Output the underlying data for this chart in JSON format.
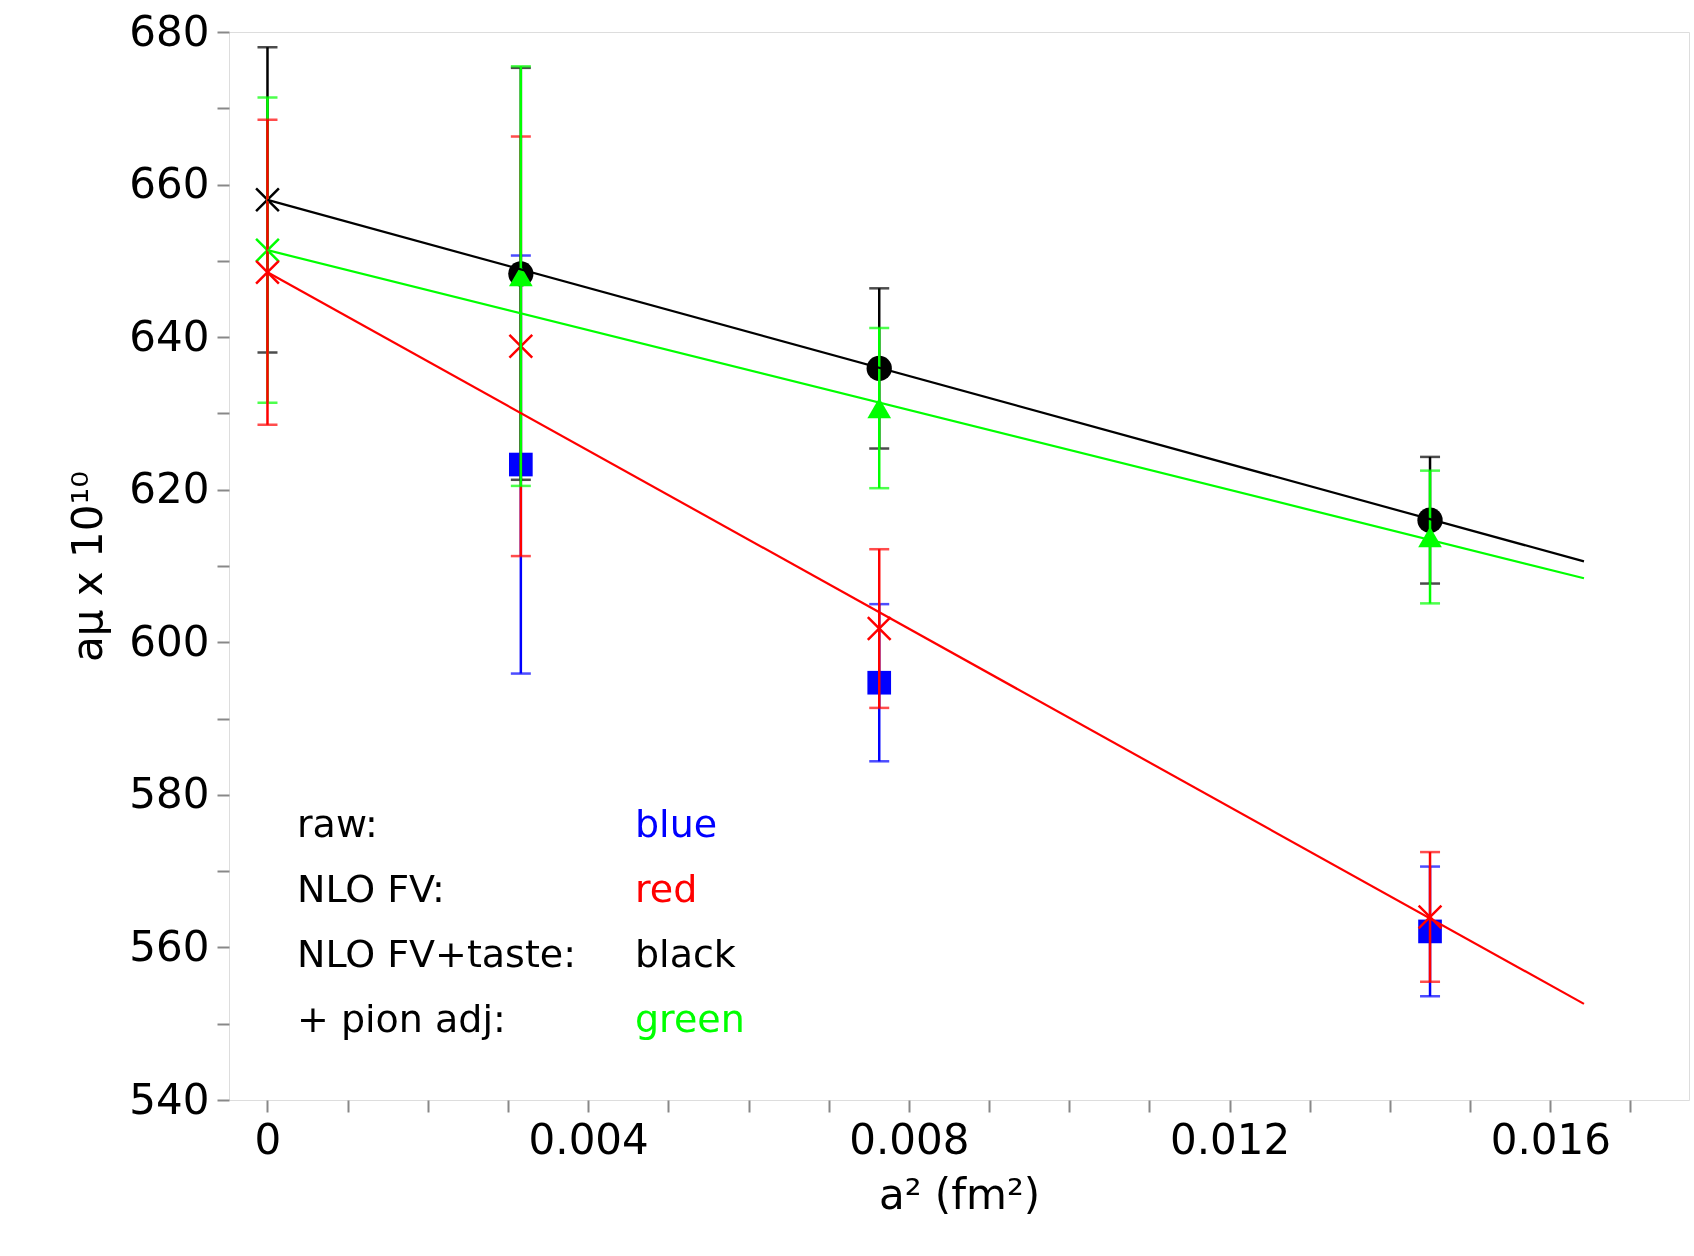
{
  "chart_data": {
    "type": "scatter",
    "xlabel": "a² (fm²)",
    "ylabel": "aμ x 10¹⁰",
    "xlim": [
      -0.00048,
      0.01773
    ],
    "ylim": [
      540,
      680
    ],
    "xticks": [
      0,
      {
        "value": 0.001,
        "label": null
      },
      {
        "value": 0.002,
        "label": null
      },
      {
        "value": 0.003,
        "label": null
      },
      0.004,
      {
        "value": 0.005,
        "label": null
      },
      {
        "value": 0.006,
        "label": null
      },
      {
        "value": 0.007,
        "label": null
      },
      0.008,
      {
        "value": 0.009,
        "label": null
      },
      {
        "value": 0.01,
        "label": null
      },
      {
        "value": 0.011,
        "label": null
      },
      0.012,
      {
        "value": 0.013,
        "label": null
      },
      {
        "value": 0.014,
        "label": null
      },
      {
        "value": 0.015,
        "label": null
      },
      0.016,
      {
        "value": 0.017,
        "label": null
      }
    ],
    "yticks": [
      540,
      {
        "value": 550,
        "label": null
      },
      560,
      {
        "value": 570,
        "label": null
      },
      580,
      {
        "value": 590,
        "label": null
      },
      600,
      {
        "value": 610,
        "label": null
      },
      620,
      {
        "value": 630,
        "label": null
      },
      640,
      {
        "value": 650,
        "label": null
      },
      660,
      {
        "value": 670,
        "label": null
      },
      680
    ],
    "grid": false,
    "series": [
      {
        "color": "#0000ff",
        "marker": "square",
        "x": [
          0.00316,
          0.00763,
          0.0145
        ],
        "values": [
          623.3,
          594.7,
          562.1
        ],
        "errors": [
          27.4,
          10.3,
          8.5
        ]
      },
      {
        "color": "#ff0000",
        "marker": "cross",
        "x": [
          0.00316,
          0.00763,
          0.0145
        ],
        "values": [
          638.8,
          601.8,
          564.0
        ],
        "errors": [
          27.5,
          10.4,
          8.5
        ]
      },
      {
        "color": "#000000",
        "marker": "circle",
        "x": [
          0.00316,
          0.00763,
          0.0145
        ],
        "values": [
          648.3,
          635.9,
          616.0
        ],
        "errors": [
          27.0,
          10.5,
          8.3
        ]
      },
      {
        "color": "#00ff00",
        "marker": "triangle",
        "x": [
          0.00316,
          0.00763,
          0.0145
        ],
        "values": [
          648.0,
          630.7,
          613.8
        ],
        "errors": [
          27.5,
          10.5,
          8.7
        ]
      },
      {
        "color": "#000000",
        "marker": "cross",
        "x": [
          0
        ],
        "values": [
          658.0
        ],
        "errors": [
          20.0
        ]
      },
      {
        "color": "#00ff00",
        "marker": "cross",
        "x": [
          0
        ],
        "values": [
          651.4
        ],
        "errors": [
          20.0
        ]
      },
      {
        "color": "#ff0000",
        "marker": "cross",
        "x": [
          0
        ],
        "values": [
          648.5
        ],
        "errors": [
          20.0
        ]
      },
      {
        "type": "line",
        "color": "#000000",
        "x": [
          0,
          0.01642
        ],
        "values": [
          658.0,
          610.6
        ]
      },
      {
        "type": "line",
        "color": "#00ff00",
        "x": [
          0,
          0.01642
        ],
        "values": [
          651.4,
          608.4
        ]
      },
      {
        "type": "line",
        "color": "#ff0000",
        "x": [
          0,
          0.01642
        ],
        "values": [
          648.5,
          552.6
        ]
      }
    ],
    "annotations": [
      "raw:",
      "blue",
      "NLO FV:",
      "red",
      "NLO FV+taste:",
      "black",
      "+ pion adj:",
      "green"
    ]
  }
}
